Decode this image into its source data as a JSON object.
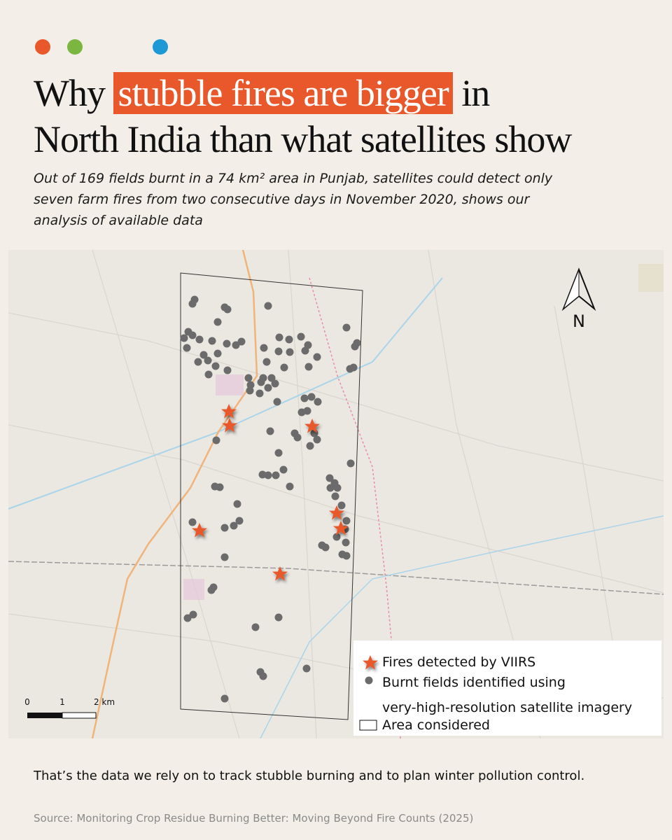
{
  "header": {
    "title_parts": [
      "Why",
      "stubble fires are bigger",
      "in"
    ],
    "title_line2": "North India than what satellites show",
    "subtitle": "Out of 169 fields burnt in a 74 km² area in Punjab, satellites could detect only seven farm fires from two consecutive days in November 2020, shows our analysis of available data"
  },
  "map": {
    "compass": "N",
    "scale_labels": [
      "0",
      "1",
      "2 km"
    ],
    "legend": [
      "Fires detected by VIIRS",
      "Burnt fields identified using",
      "very-high-resolution satellite imagery",
      "Area considered"
    ]
  },
  "footer": {
    "note": "That’s the data we rely on to track stubble burning and to plan winter pollution control.",
    "source": "Source: Monitoring Crop Residue Burning Better: Moving Beyond Fire Counts (2025)"
  }
}
